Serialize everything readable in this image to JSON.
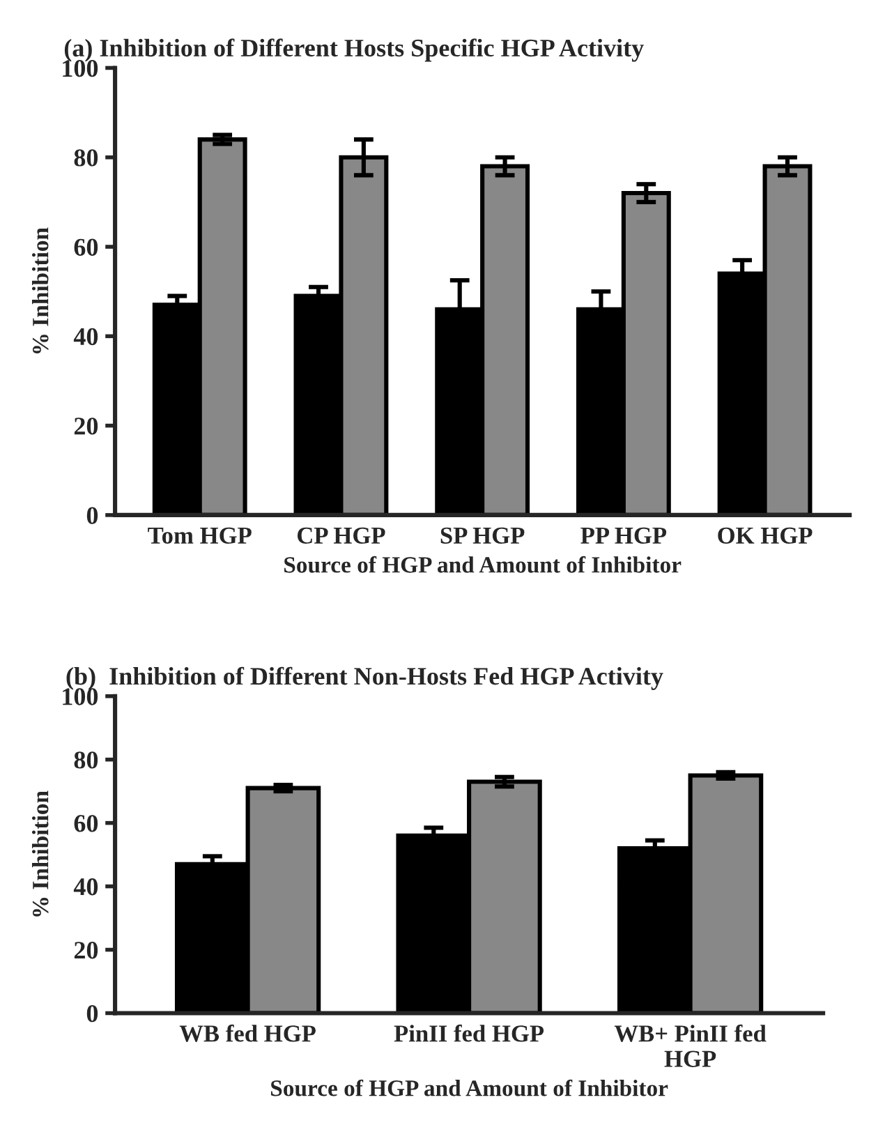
{
  "chart_data": [
    {
      "type": "bar",
      "title": "(a) Inhibition of Different Hosts Specific HGP Activity",
      "xlabel": "Source of HGP and Amount of Inhibitor",
      "ylabel": "% Inhibition",
      "categories": [
        "Tom HGP",
        "CP HGP",
        "SP HGP",
        "PP HGP",
        "OK HGP"
      ],
      "series": [
        {
          "color": "#000000",
          "values": [
            47,
            49,
            46,
            46,
            54
          ],
          "errors": [
            2,
            2,
            6.5,
            4,
            3
          ]
        },
        {
          "color": "#888888",
          "values": [
            84,
            80,
            78,
            72,
            78
          ],
          "errors": [
            1,
            4,
            2,
            2,
            2
          ]
        }
      ],
      "ylim": [
        0,
        100
      ],
      "yticks": [
        0,
        20,
        40,
        60,
        80,
        100
      ],
      "grid": false,
      "legend": false
    },
    {
      "type": "bar",
      "title": "(b)  Inhibition of Different Non-Hosts Fed HGP Activity",
      "xlabel": "Source of HGP and Amount of Inhibitor",
      "ylabel": "% Inhibition",
      "categories": [
        "WB fed HGP",
        "PinII fed HGP",
        "WB+ PinII fed\nHGP"
      ],
      "series": [
        {
          "color": "#000000",
          "values": [
            47,
            56,
            52
          ],
          "errors": [
            2.5,
            2.5,
            2.5
          ]
        },
        {
          "color": "#888888",
          "values": [
            71,
            73,
            75
          ],
          "errors": [
            1,
            1.5,
            1
          ]
        }
      ],
      "ylim": [
        0,
        100
      ],
      "yticks": [
        0,
        20,
        40,
        60,
        80,
        100
      ],
      "grid": false,
      "legend": false
    }
  ]
}
